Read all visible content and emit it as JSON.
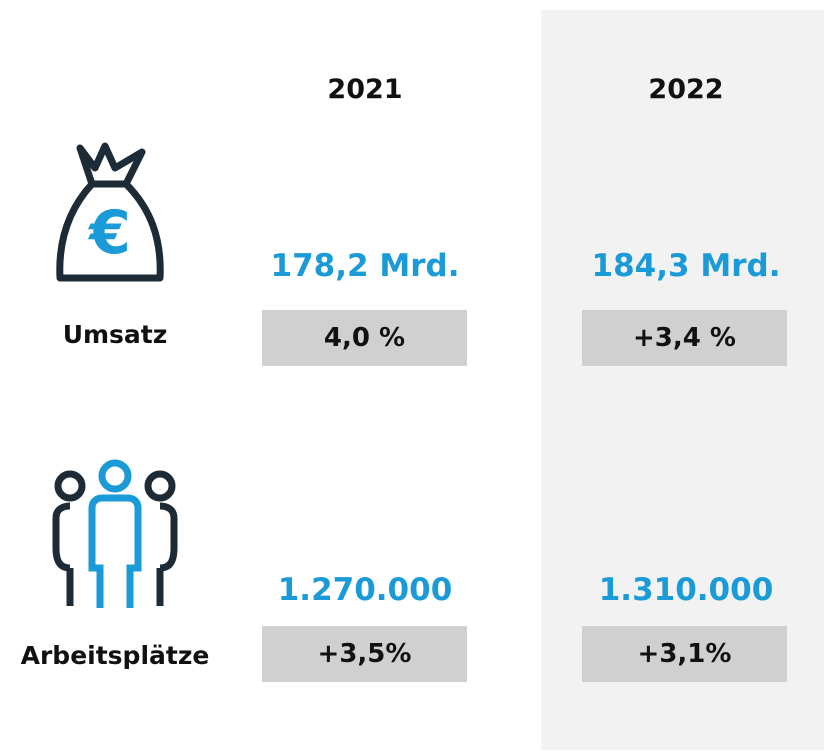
{
  "columns": [
    "2021",
    "2022"
  ],
  "rows": [
    {
      "label": "Umsatz",
      "values": [
        "178,2 Mrd.",
        "184,3 Mrd."
      ],
      "changes": [
        "4,0 %",
        "+3,4 %"
      ]
    },
    {
      "label": "Arbeitsplätze",
      "values": [
        "1.270.000",
        "1.310.000"
      ],
      "changes": [
        "+3,5%",
        "+3,1%"
      ]
    }
  ]
}
